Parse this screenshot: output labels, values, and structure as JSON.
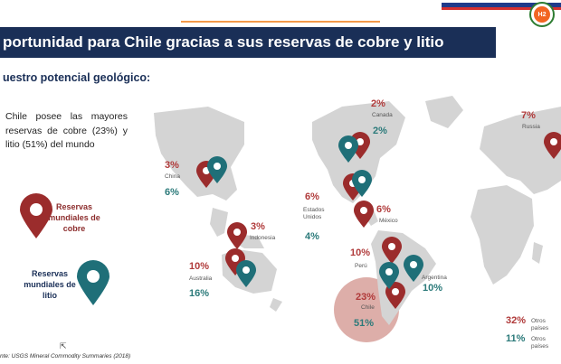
{
  "header": {
    "title": "portunidad para Chile gracias a sus reservas de cobre y litio",
    "subtitle": "uestro potencial geológico:"
  },
  "intro_text": "Chile posee las mayores reservas de cobre (23%) y litio (51%) del mundo",
  "legend": {
    "copper": "Reservas mundiales de cobre",
    "lithium": "Reservas mundiales de litio"
  },
  "colors": {
    "title_bar": "#1a2f57",
    "copper": "#9b2c2c",
    "lithium": "#1f6f78",
    "map": "#d4d4d4",
    "chile_highlight": "#d7a09a"
  },
  "regions": [
    {
      "name": "Canada",
      "copper": "2%",
      "lithium": "2%"
    },
    {
      "name": "Russia",
      "copper": "7%"
    },
    {
      "name": "China",
      "copper": "3%",
      "lithium": "6%"
    },
    {
      "name": "Estados Unidos",
      "copper": "6%",
      "lithium": "4%"
    },
    {
      "name": "México",
      "copper": "6%"
    },
    {
      "name": "Indonesia",
      "copper": "3%"
    },
    {
      "name": "Australia",
      "copper": "10%",
      "lithium": "16%"
    },
    {
      "name": "Perú",
      "copper": "10%"
    },
    {
      "name": "Argentina",
      "lithium": "10%"
    },
    {
      "name": "Chile",
      "copper": "23%",
      "lithium": "51%"
    }
  ],
  "others": {
    "copper_pct": "32%",
    "lithium_pct": "11%",
    "copper_label": "Otros países",
    "lithium_label": "Otros países"
  },
  "source": "nte: USGS Mineral Commodity Summaries (2018)",
  "cursor_glyph": "⇱"
}
